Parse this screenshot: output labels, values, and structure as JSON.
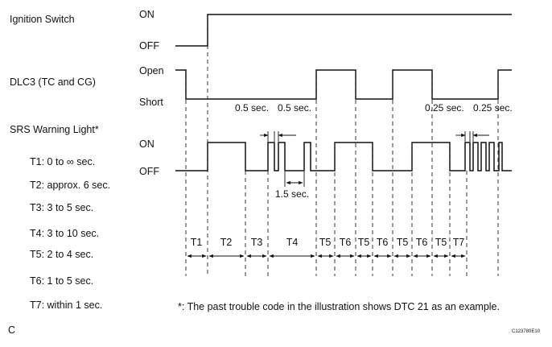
{
  "signals": {
    "ignition": {
      "name": "Ignition Switch",
      "high": "ON",
      "low": "OFF"
    },
    "dlc3": {
      "name": "DLC3 (TC and CG)",
      "high": "Open",
      "low": "Short"
    },
    "srs": {
      "name": "SRS Warning Light*",
      "high": "ON",
      "low": "OFF"
    }
  },
  "legend": [
    "T1: 0 to ∞ sec.",
    "T2: approx. 6 sec.",
    "T3: 3 to 5 sec.",
    "T4: 3 to 10 sec.",
    "T5: 2 to 4 sec.",
    "T6: 1 to 5 sec.",
    "T7: within 1 sec."
  ],
  "annotations": {
    "pulse_05_a": "0.5 sec.",
    "pulse_05_b": "0.5 sec.",
    "gap_15": "1.5 sec.",
    "pulse_025_a": "0.25 sec.",
    "pulse_025_b": "0.25 sec."
  },
  "intervals": [
    "T1",
    "T2",
    "T3",
    "T4",
    "T5",
    "T6",
    "T5",
    "T6",
    "T5",
    "T6",
    "T5",
    "T7"
  ],
  "footnote": "*: The past trouble code in the illustration shows DTC 21 as an example.",
  "corner_letter": "C",
  "figure_id": "C123780E10"
}
